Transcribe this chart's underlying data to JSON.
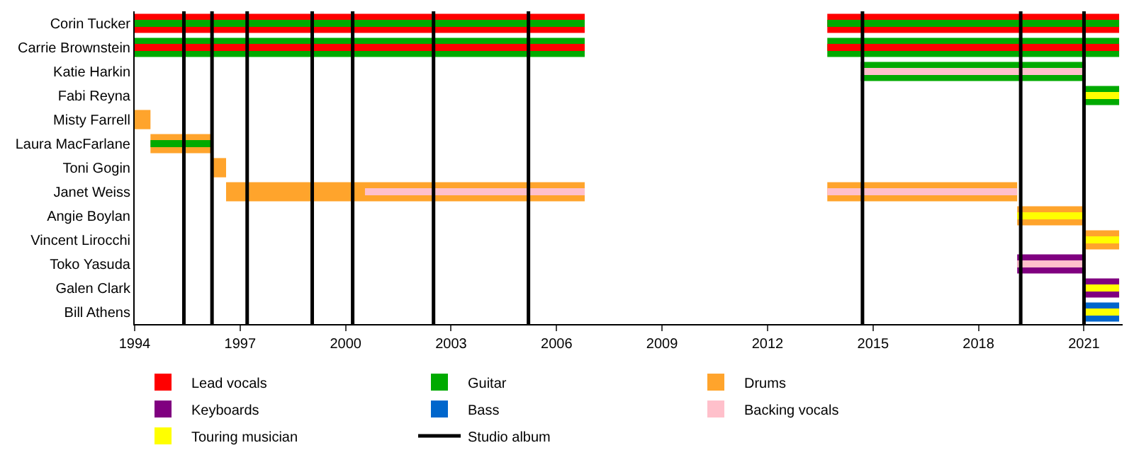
{
  "chart_data": {
    "type": "bar",
    "orientation": "horizontal",
    "legend": "bottom",
    "categories": [
      "Corin Tucker",
      "Carrie Brownstein",
      "Katie Harkin",
      "Fabi Reyna",
      "Misty Farrell",
      "Laura MacFarlane",
      "Toni Gogin",
      "Janet Weiss",
      "Angie Boylan",
      "Vincent Lirocchi",
      "Toko Yasuda",
      "Galen Clark",
      "Bill Athens"
    ],
    "xlim": [
      1994,
      2022.1
    ],
    "xticks": [
      1994,
      1997,
      2000,
      2003,
      2006,
      2009,
      2012,
      2015,
      2018,
      2021
    ],
    "series": [
      {
        "name": "Lead vocals",
        "color": "#ff0000",
        "base": [
          1994,
          null,
          null,
          null,
          null,
          null,
          null,
          null,
          null,
          null,
          null,
          null,
          null
        ],
        "values": [
          12.8,
          null,
          null,
          null,
          null,
          null,
          null,
          null,
          null,
          null,
          null,
          null,
          null
        ]
      },
      {
        "name": "Guitar",
        "color": "#00aa00",
        "base": [
          null,
          1994,
          2014.65,
          2021,
          null,
          null,
          null,
          null,
          null,
          null,
          null,
          null,
          null
        ],
        "values": [
          null,
          12.8,
          6.4,
          1.0,
          null,
          null,
          null,
          null,
          null,
          null,
          null,
          null,
          null
        ]
      },
      {
        "name": "Drums",
        "color": "#ffa42c",
        "base": [
          null,
          null,
          null,
          null,
          1994,
          1994.45,
          1996.2,
          1996.6,
          2019.1,
          2021,
          null,
          null,
          null
        ],
        "values": [
          null,
          null,
          null,
          null,
          0.45,
          1.75,
          0.4,
          10.2,
          1.95,
          1.0,
          null,
          null,
          null
        ]
      },
      {
        "name": "Keyboards",
        "color": "#800080",
        "base": [
          null,
          null,
          null,
          null,
          null,
          null,
          null,
          null,
          null,
          null,
          2019.1,
          2021,
          null
        ],
        "values": [
          null,
          null,
          null,
          null,
          null,
          null,
          null,
          null,
          null,
          null,
          1.95,
          1.0,
          null
        ]
      },
      {
        "name": "Bass",
        "color": "#0066cc",
        "base": [
          null,
          null,
          null,
          null,
          null,
          null,
          null,
          null,
          null,
          null,
          null,
          null,
          2021
        ],
        "values": [
          null,
          null,
          null,
          null,
          null,
          null,
          null,
          null,
          null,
          null,
          null,
          null,
          1.0
        ]
      },
      {
        "color": "#ff0000",
        "base": [
          2013.7,
          null,
          null,
          null,
          null,
          null,
          null,
          null,
          null,
          null,
          null,
          null,
          null
        ],
        "values": [
          8.3,
          null,
          null,
          null,
          null,
          null,
          null,
          null,
          null,
          null,
          null,
          null,
          null
        ]
      },
      {
        "color": "#00aa00",
        "base": [
          null,
          2013.7,
          null,
          null,
          null,
          null,
          null,
          null,
          null,
          null,
          null,
          null,
          null
        ],
        "values": [
          null,
          8.3,
          null,
          null,
          null,
          null,
          null,
          null,
          null,
          null,
          null,
          null,
          null
        ]
      },
      {
        "color": "#ffa42c",
        "base": [
          null,
          null,
          null,
          null,
          null,
          null,
          null,
          2013.7,
          null,
          null,
          null,
          null,
          null
        ],
        "values": [
          null,
          null,
          null,
          null,
          null,
          null,
          null,
          5.4,
          null,
          null,
          null,
          null,
          null
        ]
      },
      {
        "color": "#00aa00",
        "base": [
          1994,
          null,
          null,
          null,
          null,
          1994.45,
          null,
          null,
          null,
          null,
          null,
          null,
          null
        ],
        "values": [
          12.8,
          null,
          null,
          null,
          null,
          1.75,
          null,
          null,
          null,
          null,
          null,
          null,
          null
        ]
      },
      {
        "color": "#ff0000",
        "base": [
          null,
          1994,
          null,
          null,
          null,
          null,
          null,
          null,
          null,
          null,
          null,
          null,
          null
        ],
        "values": [
          null,
          12.8,
          null,
          null,
          null,
          null,
          null,
          null,
          null,
          null,
          null,
          null,
          null
        ]
      },
      {
        "color": "#00aa00",
        "base": [
          2013.7,
          null,
          null,
          null,
          null,
          null,
          null,
          null,
          null,
          null,
          null,
          null,
          null
        ],
        "values": [
          8.3,
          null,
          null,
          null,
          null,
          null,
          null,
          null,
          null,
          null,
          null,
          null,
          null
        ]
      },
      {
        "color": "#ff0000",
        "base": [
          null,
          2013.7,
          null,
          null,
          null,
          null,
          null,
          null,
          null,
          null,
          null,
          null,
          null
        ],
        "values": [
          null,
          8.3,
          null,
          null,
          null,
          null,
          null,
          null,
          null,
          null,
          null,
          null,
          null
        ]
      },
      {
        "name": "Backing vocals",
        "color": "#ffc0cb",
        "base": [
          null,
          null,
          2014.65,
          null,
          null,
          null,
          null,
          2000.55,
          null,
          null,
          2019.1,
          null,
          null
        ],
        "values": [
          null,
          null,
          6.4,
          null,
          null,
          null,
          null,
          6.25,
          null,
          null,
          1.95,
          null,
          null
        ]
      },
      {
        "color": "#ffc0cb",
        "base": [
          null,
          null,
          null,
          null,
          null,
          null,
          null,
          2013.7,
          null,
          null,
          null,
          null,
          null
        ],
        "values": [
          null,
          null,
          null,
          null,
          null,
          null,
          null,
          5.4,
          null,
          null,
          null,
          null,
          null
        ]
      },
      {
        "name": "Touring musician",
        "color": "#ffff00",
        "base": [
          null,
          null,
          null,
          2021,
          null,
          null,
          null,
          null,
          2019.1,
          2021,
          null,
          2021,
          2021
        ],
        "values": [
          null,
          null,
          null,
          1.0,
          null,
          null,
          null,
          null,
          1.95,
          1.0,
          null,
          1.0,
          1.0
        ]
      }
    ],
    "ref_lines": [
      {
        "axis": "x",
        "value": 1995.4,
        "label": "Studio album",
        "color": "#000000"
      },
      {
        "axis": "x",
        "value": 1996.2,
        "color": "#000000"
      },
      {
        "axis": "x",
        "value": 1997.2,
        "color": "#000000"
      },
      {
        "axis": "x",
        "value": 1999.05,
        "color": "#000000"
      },
      {
        "axis": "x",
        "value": 2000.2,
        "color": "#000000"
      },
      {
        "axis": "x",
        "value": 2002.5,
        "color": "#000000"
      },
      {
        "axis": "x",
        "value": 2005.2,
        "color": "#000000"
      },
      {
        "axis": "x",
        "value": 2014.7,
        "color": "#000000"
      },
      {
        "axis": "x",
        "value": 2019.2,
        "color": "#000000"
      },
      {
        "axis": "x",
        "value": 2021.0,
        "color": "#000000"
      }
    ]
  }
}
